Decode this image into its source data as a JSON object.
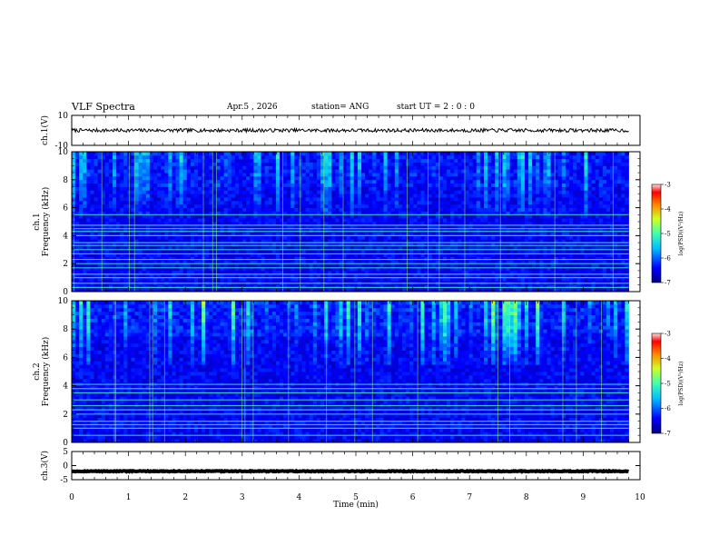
{
  "header": {
    "title": "VLF Spectra",
    "date": "Apr.5 , 2026",
    "station": "station= ANG",
    "start": "start UT = 2 : 0 : 0"
  },
  "chart_data": [
    {
      "id": "ch1-waveform",
      "type": "line",
      "ylabel": "ch.1(V)",
      "ylim": [
        -10,
        10
      ],
      "ytick_labels": [
        "10",
        "-10"
      ],
      "description_level": 0,
      "noise_amplitude": 1.2
    },
    {
      "id": "ch1-spectrogram",
      "type": "heatmap",
      "ylabel": "ch.1",
      "ylabel2": "Frequency (kHz)",
      "ylim": [
        0,
        10
      ],
      "ytick_labels": [
        "0",
        "2",
        "4",
        "6",
        "8",
        "10"
      ],
      "colorbar": {
        "label": "log(PSD)(V²/Hz)",
        "range": [
          -7,
          -3
        ],
        "tick_labels": [
          "-3",
          "-4",
          "-5",
          "-6",
          "-7"
        ]
      },
      "bands_khz": [
        0.3,
        0.6,
        1.0,
        1.25,
        1.7,
        2.0,
        2.3,
        2.7,
        3.0,
        3.3,
        3.5,
        4.0,
        4.3,
        4.5,
        4.75,
        5.5
      ],
      "seed": 17,
      "intensity": 0.45
    },
    {
      "id": "ch2-spectrogram",
      "type": "heatmap",
      "ylabel": "ch.2",
      "ylabel2": "Frequency (kHz)",
      "ylim": [
        0,
        10
      ],
      "ytick_labels": [
        "0",
        "2",
        "4",
        "6",
        "8",
        "10"
      ],
      "colorbar": {
        "label": "log(PSD)(V²/Hz)",
        "range": [
          -7,
          -3
        ],
        "tick_labels": [
          "-3",
          "-4",
          "-5",
          "-6",
          "-7"
        ]
      },
      "bands_khz": [
        0.5,
        1.0,
        1.25,
        1.5,
        2.0,
        2.3,
        2.6,
        3.0,
        3.5,
        3.8,
        4.1
      ],
      "seed": 91,
      "intensity": 0.7
    },
    {
      "id": "ch3-waveform",
      "type": "line",
      "ylabel": "ch.3(V)",
      "ylim": [
        -5,
        5
      ],
      "ytick_labels": [
        "5",
        "0",
        "-5"
      ],
      "description_level": -2,
      "noise_amplitude": 0.15
    }
  ],
  "xaxis": {
    "xlabel": "Time (min)",
    "xlim": [
      0,
      10
    ],
    "tick_labels": [
      "0",
      "1",
      "2",
      "3",
      "4",
      "5",
      "6",
      "7",
      "8",
      "9",
      "10"
    ],
    "data_end_min": 9.8
  }
}
